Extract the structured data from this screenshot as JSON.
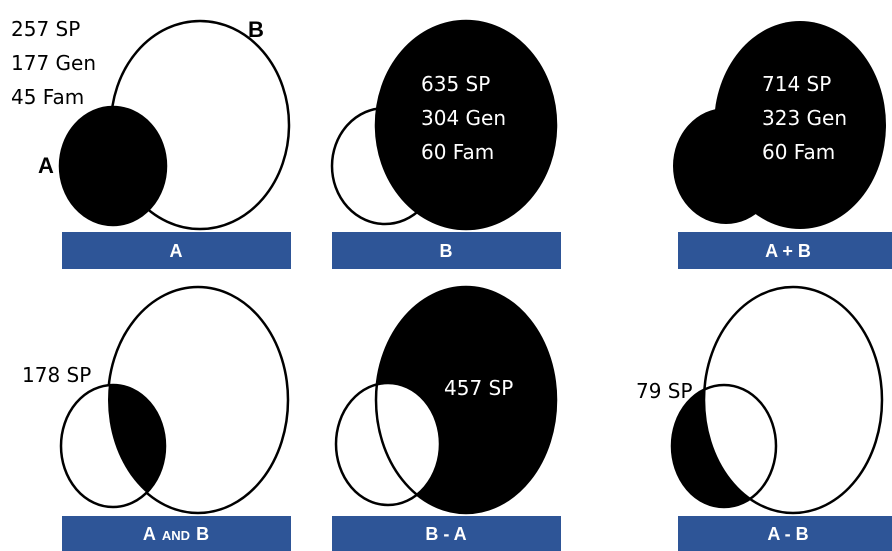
{
  "set_a_letter": "A",
  "set_b_letter": "B",
  "panels": {
    "a": {
      "bar_label": "A",
      "stats": [
        "257 SP",
        "177 Gen",
        "45 Fam"
      ]
    },
    "b": {
      "bar_label": "B",
      "stats": [
        "635 SP",
        "304 Gen",
        "60 Fam"
      ]
    },
    "a_plus_b": {
      "bar_label": "A + B",
      "stats": [
        "714 SP",
        "323 Gen",
        "60 Fam"
      ]
    },
    "a_and_b": {
      "bar_label_a": "A",
      "bar_label_and": "AND",
      "bar_label_b": "B",
      "stats": [
        "178 SP"
      ]
    },
    "b_minus_a": {
      "bar_label": "B - A",
      "stats": [
        "457 SP"
      ]
    },
    "a_minus_b": {
      "bar_label": "A - B",
      "stats": [
        "79 SP"
      ]
    }
  },
  "colors": {
    "bar": "#2e5597",
    "fill": "#000000",
    "outline": "#000000",
    "background": "#ffffff"
  }
}
